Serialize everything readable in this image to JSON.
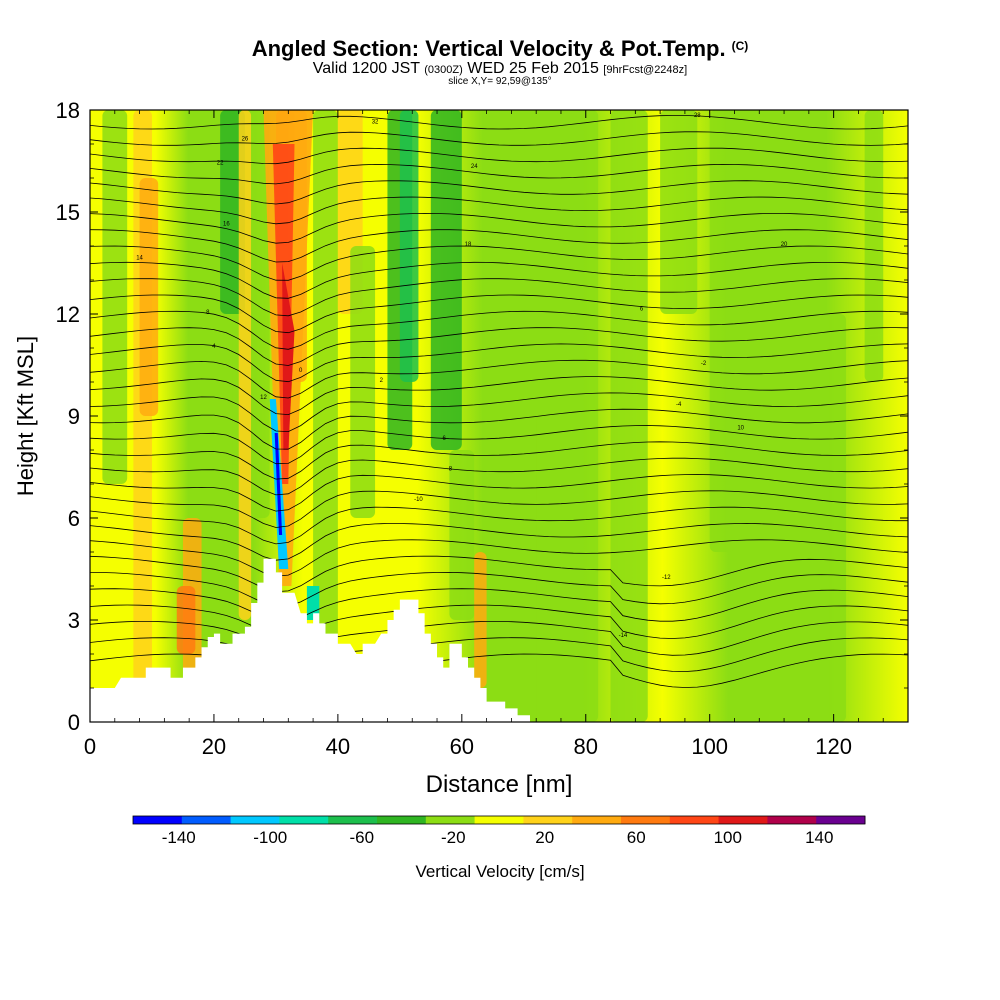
{
  "title": {
    "main": "Angled Section: Vertical Velocity & Pot.Temp.",
    "main_tag": "(C)",
    "valid_prefix": "Valid 1200 JST",
    "valid_utc": "(0300Z)",
    "valid_date": "WED 25 Feb 2015",
    "forecast": "[9hrFcst@2248z]",
    "slice": "slice X,Y= 92,59@135°"
  },
  "chart_data": {
    "type": "heatmap",
    "xlabel": "Distance [nm]",
    "ylabel": "Height [Kft MSL]",
    "xlim": [
      0,
      132
    ],
    "ylim": [
      0,
      18
    ],
    "x_ticks": [
      0,
      20,
      40,
      60,
      80,
      100,
      120
    ],
    "y_ticks": [
      0,
      3,
      6,
      9,
      12,
      15,
      18
    ],
    "colorbar": {
      "label": "Vertical Velocity [cm/s]",
      "tick_labels": [
        "-140",
        "-100",
        "-60",
        "-20",
        "20",
        "60",
        "100",
        "140"
      ],
      "tick_values": [
        -140,
        -100,
        -60,
        -20,
        20,
        60,
        100,
        140
      ],
      "range": [
        -160,
        160
      ],
      "colors": [
        "#0000ff",
        "#005cff",
        "#00c8ff",
        "#00dfa8",
        "#1dbf4d",
        "#2fb522",
        "#8cdd14",
        "#f5ff00",
        "#ffd21a",
        "#ffaa10",
        "#ff7a10",
        "#ff4616",
        "#e01818",
        "#b0004a",
        "#6a0090"
      ]
    },
    "terrain_heights_kft": [
      [
        0,
        1.0
      ],
      [
        4,
        1.0
      ],
      [
        5,
        1.3
      ],
      [
        9,
        1.3
      ],
      [
        9,
        1.6
      ],
      [
        13,
        1.6
      ],
      [
        13,
        1.3
      ],
      [
        15,
        1.3
      ],
      [
        15,
        1.6
      ],
      [
        17,
        1.6
      ],
      [
        17,
        1.9
      ],
      [
        18,
        1.9
      ],
      [
        18,
        2.2
      ],
      [
        19,
        2.2
      ],
      [
        19,
        2.5
      ],
      [
        20,
        2.5
      ],
      [
        20,
        2.6
      ],
      [
        21,
        2.6
      ],
      [
        21,
        2.3
      ],
      [
        23,
        2.3
      ],
      [
        23,
        2.6
      ],
      [
        25,
        2.6
      ],
      [
        25,
        2.8
      ],
      [
        26,
        2.8
      ],
      [
        26,
        3.5
      ],
      [
        27,
        3.5
      ],
      [
        27,
        4.1
      ],
      [
        28,
        4.1
      ],
      [
        28,
        4.8
      ],
      [
        30,
        4.8
      ],
      [
        30,
        4.4
      ],
      [
        31,
        4.4
      ],
      [
        31,
        3.8
      ],
      [
        33,
        3.8
      ],
      [
        34,
        3.2
      ],
      [
        35,
        3.2
      ],
      [
        35,
        2.9
      ],
      [
        36,
        2.9
      ],
      [
        36,
        3.2
      ],
      [
        37,
        3.2
      ],
      [
        37,
        2.9
      ],
      [
        38,
        2.9
      ],
      [
        38,
        2.6
      ],
      [
        40,
        2.6
      ],
      [
        40,
        2.3
      ],
      [
        42,
        2.3
      ],
      [
        43,
        2.0
      ],
      [
        44,
        2.0
      ],
      [
        44,
        2.3
      ],
      [
        46,
        2.3
      ],
      [
        47,
        2.6
      ],
      [
        48,
        2.6
      ],
      [
        48,
        3.0
      ],
      [
        49,
        3.0
      ],
      [
        49,
        3.3
      ],
      [
        50,
        3.3
      ],
      [
        50,
        3.6
      ],
      [
        53,
        3.6
      ],
      [
        53,
        3.2
      ],
      [
        54,
        3.2
      ],
      [
        54,
        2.6
      ],
      [
        55,
        2.6
      ],
      [
        55,
        2.3
      ],
      [
        56,
        2.3
      ],
      [
        56,
        1.9
      ],
      [
        57,
        1.9
      ],
      [
        57,
        1.6
      ],
      [
        58,
        1.6
      ],
      [
        58,
        2.3
      ],
      [
        60,
        2.3
      ],
      [
        60,
        1.9
      ],
      [
        61,
        1.9
      ],
      [
        61,
        1.6
      ],
      [
        62,
        1.6
      ],
      [
        62,
        1.3
      ],
      [
        63,
        1.3
      ],
      [
        63,
        1.0
      ],
      [
        64,
        1.0
      ],
      [
        64,
        0.6
      ],
      [
        67,
        0.6
      ],
      [
        67,
        0.4
      ],
      [
        69,
        0.4
      ],
      [
        69,
        0.2
      ],
      [
        71,
        0.2
      ],
      [
        71,
        0.0
      ],
      [
        132,
        0.0
      ]
    ],
    "updraft_core": {
      "x": [
        27,
        36
      ],
      "y": [
        4.0,
        18.0
      ],
      "max_cm_s": 110
    },
    "downdraft_core": {
      "x": [
        29,
        31
      ],
      "y": [
        4.5,
        9.5
      ],
      "min_cm_s": -150
    },
    "isentrope_labels": [
      "-14",
      "-12",
      "-10",
      "-8",
      "-6",
      "-4",
      "-2",
      "0",
      "2",
      "4",
      "6",
      "8",
      "10",
      "12",
      "14",
      "16",
      "18",
      "20",
      "22",
      "24",
      "26",
      "28",
      "30",
      "32"
    ]
  }
}
